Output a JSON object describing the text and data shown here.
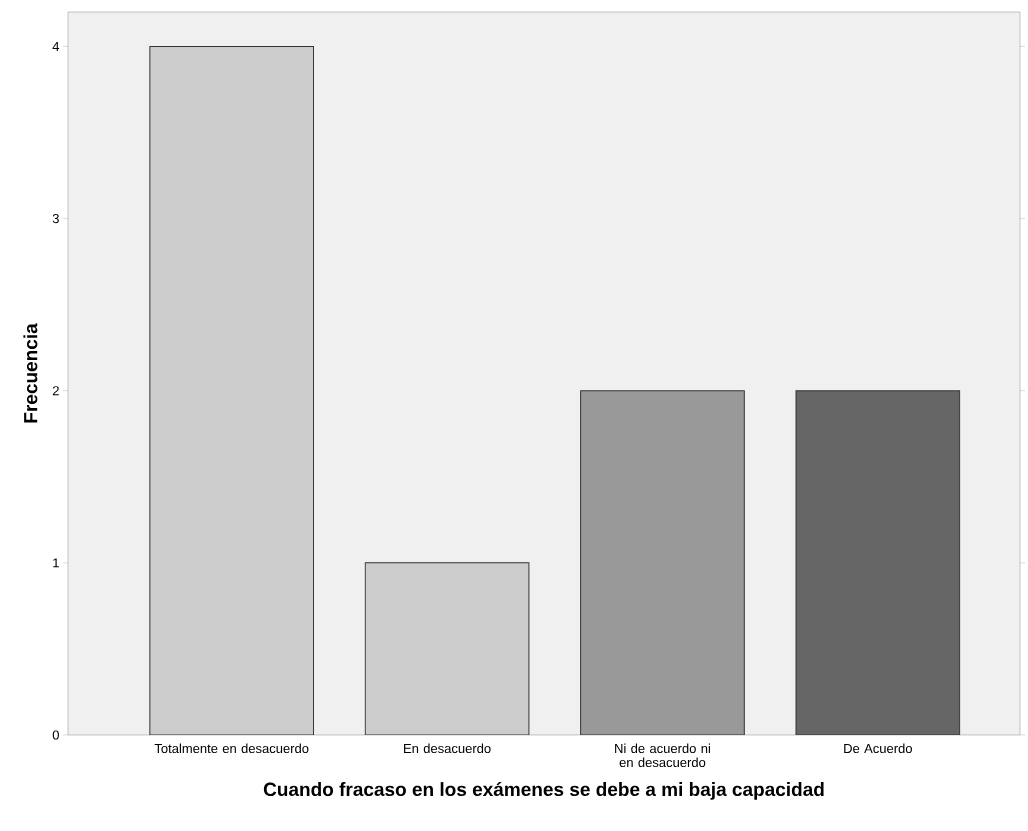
{
  "chart_data": {
    "type": "bar",
    "xlabel": "Cuando fracaso en los exámenes se debe a mi baja capacidad",
    "ylabel": "Frecuencia",
    "categories": [
      "Totalmente en desacuerdo",
      "En desacuerdo",
      "Ni de acuerdo ni en desacuerdo",
      "De Acuerdo"
    ],
    "values": [
      4,
      1,
      2,
      2
    ],
    "colors": [
      "#cccccc",
      "#cccccc",
      "#999999",
      "#666666"
    ],
    "ylim": [
      0,
      4.2
    ],
    "yticks": [
      0,
      1,
      2,
      3,
      4
    ]
  }
}
